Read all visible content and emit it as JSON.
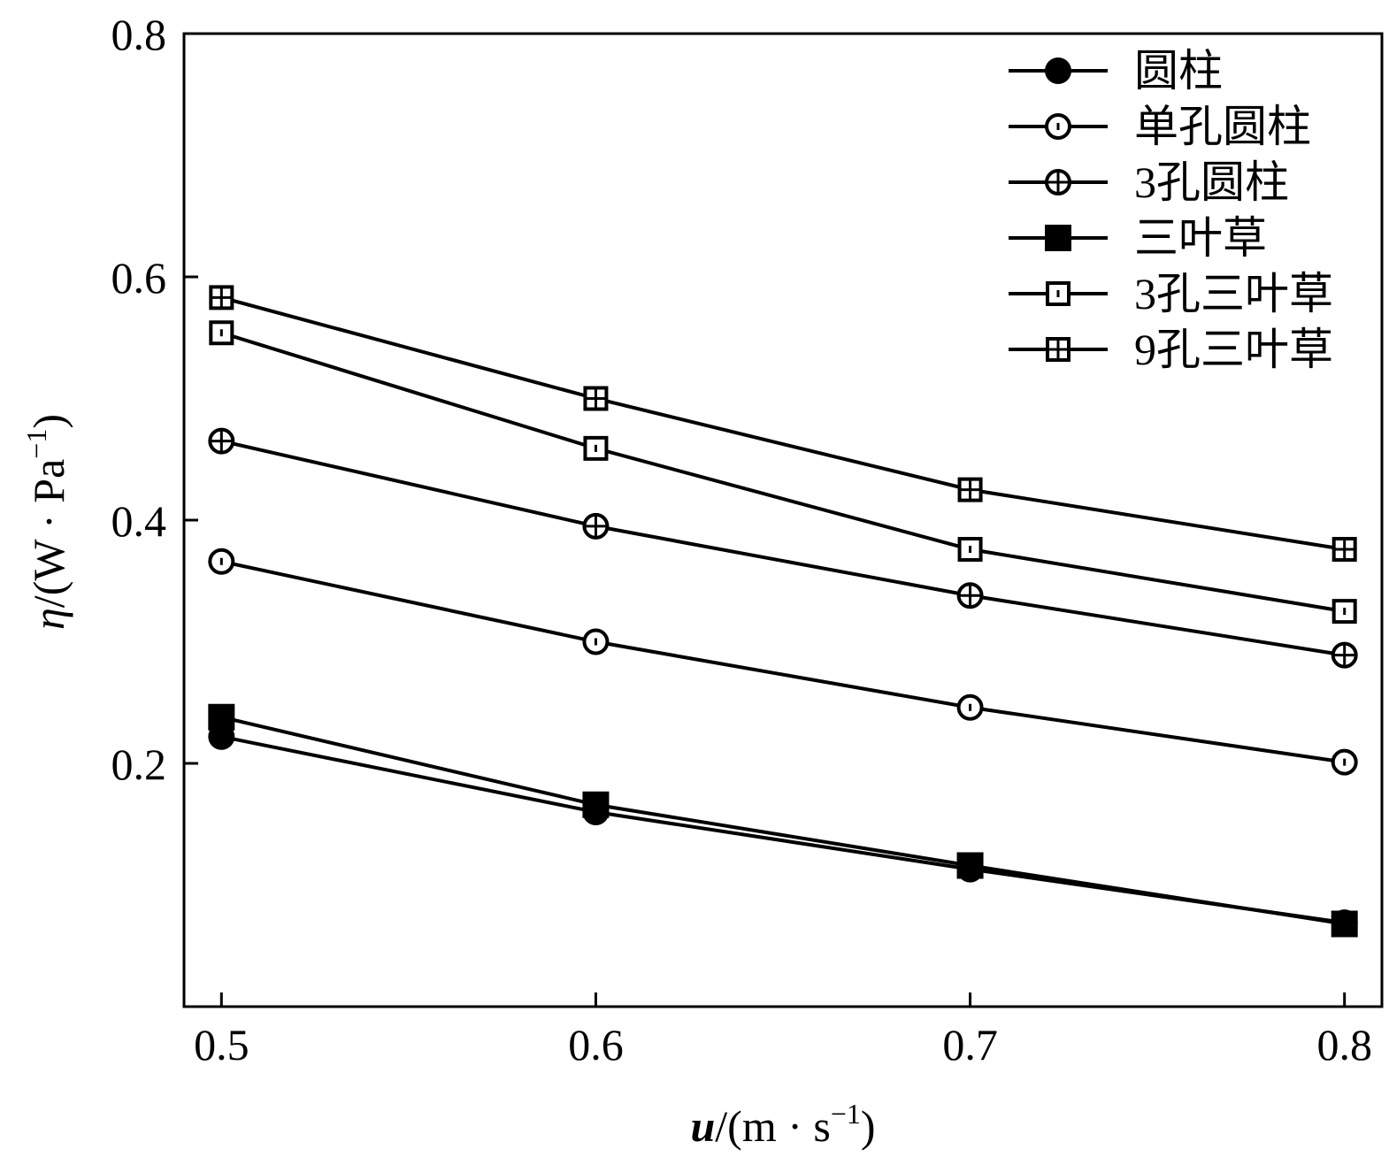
{
  "chart_data": {
    "type": "line",
    "title": "",
    "xlabel": {
      "main": "u",
      "unit_open": "/(m · s",
      "unit_sup": "−1",
      "unit_close": ")"
    },
    "ylabel": {
      "main": "η",
      "unit_open": "/(W · Pa",
      "unit_sup": "−1",
      "unit_close": ")"
    },
    "x": [
      0.5,
      0.6,
      0.7,
      0.8
    ],
    "xlim": [
      0.49,
      0.81
    ],
    "ylim": [
      0.0,
      0.8
    ],
    "xticks": [
      {
        "value": 0.5,
        "label": "0.5"
      },
      {
        "value": 0.6,
        "label": "0.6"
      },
      {
        "value": 0.7,
        "label": "0.7"
      },
      {
        "value": 0.8,
        "label": "0.8"
      }
    ],
    "yticks": [
      {
        "value": 0.2,
        "label": "0.2"
      },
      {
        "value": 0.4,
        "label": "0.4"
      },
      {
        "value": 0.6,
        "label": "0.6"
      },
      {
        "value": 0.8,
        "label": "0.8"
      }
    ],
    "grid": false,
    "legend_position": "top-right",
    "series": [
      {
        "name": "圆柱",
        "marker": "filled-circle",
        "values": [
          0.222,
          0.16,
          0.113,
          0.069
        ]
      },
      {
        "name": "单孔圆柱",
        "marker": "dotted-circle",
        "values": [
          0.366,
          0.3,
          0.246,
          0.201
        ]
      },
      {
        "name": "3孔圆柱",
        "marker": "plus-circle",
        "values": [
          0.465,
          0.395,
          0.338,
          0.289
        ]
      },
      {
        "name": "三叶草",
        "marker": "filled-square",
        "values": [
          0.238,
          0.166,
          0.116,
          0.068
        ]
      },
      {
        "name": "3孔三叶草",
        "marker": "dotted-square",
        "values": [
          0.554,
          0.459,
          0.376,
          0.325
        ]
      },
      {
        "name": "9孔三叶草",
        "marker": "plus-square",
        "values": [
          0.583,
          0.5,
          0.425,
          0.376
        ]
      }
    ]
  }
}
